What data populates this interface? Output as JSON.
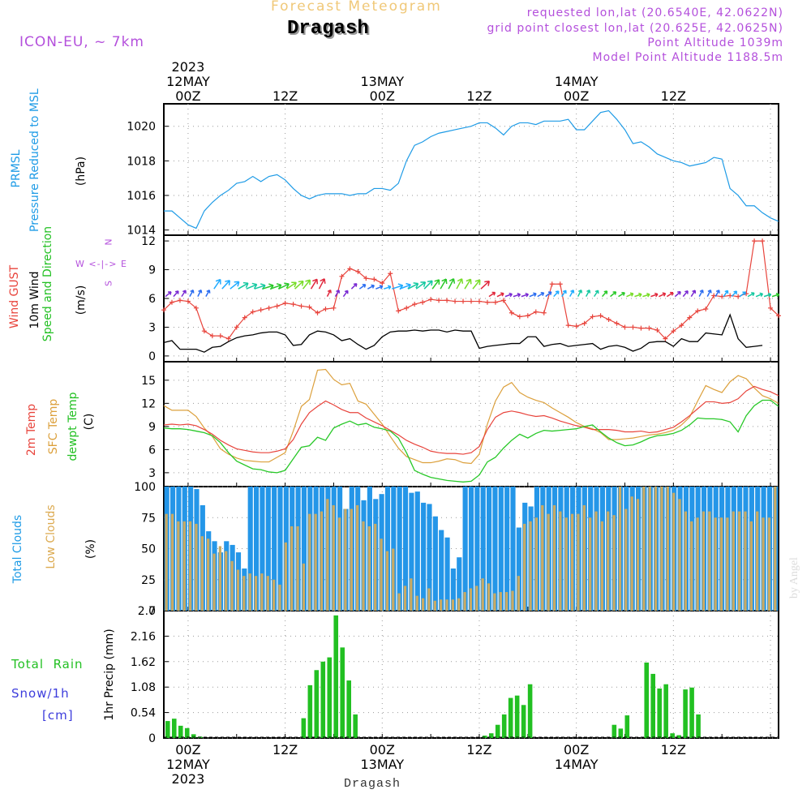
{
  "header": {
    "subtitle": "Forecast Meteogram",
    "location": "Dragash",
    "model": "ICON-EU, ~ 7km",
    "requested": "requested lon,lat (20.6540E, 42.0622N)",
    "grid_point": "grid point closest lon,lat (20.625E, 42.0625N)",
    "point_altitude": "Point Altitude 1039m",
    "model_altitude": "Model Point Altitude 1188.5m",
    "footer": "Dragash",
    "credit": "by Angel"
  },
  "time_axis": {
    "top_labels": [
      {
        "hour": 3,
        "lines": [
          "2023",
          "12MAY",
          "00Z"
        ]
      },
      {
        "hour": 15,
        "lines": [
          "12Z"
        ]
      },
      {
        "hour": 27,
        "lines": [
          "13MAY",
          "00Z"
        ]
      },
      {
        "hour": 39,
        "lines": [
          "12Z"
        ]
      },
      {
        "hour": 51,
        "lines": [
          "14MAY",
          "00Z"
        ]
      },
      {
        "hour": 63,
        "lines": [
          "12Z"
        ]
      }
    ],
    "bottom_labels": [
      {
        "hour": 3,
        "lines": [
          "00Z",
          "12MAY",
          "2023"
        ]
      },
      {
        "hour": 15,
        "lines": [
          "12Z"
        ]
      },
      {
        "hour": 27,
        "lines": [
          "00Z",
          "13MAY"
        ]
      },
      {
        "hour": 39,
        "lines": [
          "12Z"
        ]
      },
      {
        "hour": 51,
        "lines": [
          "00Z",
          "14MAY"
        ]
      },
      {
        "hour": 63,
        "lines": [
          "12Z"
        ]
      }
    ]
  },
  "panel_labels": {
    "pressure": [
      "PRMSL",
      "Pressure Reduced to MSL",
      "(hPa)"
    ],
    "wind": [
      "Wind GUST",
      "10m Wind",
      "Speed and Direction",
      "(m/s)"
    ],
    "compass": [
      "N",
      "S",
      "W <-|-> E"
    ],
    "temp": [
      "2m Temp",
      "SFC Temp",
      "dewpt Temp",
      "(C)"
    ],
    "clouds": [
      "Total Clouds",
      "Low Clouds",
      "(%)"
    ],
    "precip": [
      "Total  Rain",
      "Snow/1h",
      "[cm]",
      "1hr Precip (mm)"
    ]
  },
  "colors": {
    "pressure": "#1e9be6",
    "gust": "#e8443c",
    "wind10m": "#000000",
    "t2m": "#e8443c",
    "tsfc": "#dca03c",
    "dewpt": "#28c828",
    "cloud_total": "#2496e8",
    "cloud_low": "#c8aa64",
    "rain": "#22c022",
    "snow": "#3c3cdc",
    "subtitle": "#f0c878",
    "info": "#b450dc"
  },
  "chart_data": [
    {
      "type": "line",
      "title": "PRMSL Pressure Reduced to MSL",
      "ylabel": "(hPa)",
      "ylim": [
        1013.7,
        1021.3
      ],
      "yticks": [
        1014,
        1016,
        1018,
        1020
      ],
      "x": "hours 0-76",
      "series": [
        {
          "name": "PRMSL",
          "values": [
            1015.1,
            1015.1,
            1014.7,
            1014.3,
            1014.1,
            1015.1,
            1015.6,
            1016.0,
            1016.3,
            1016.7,
            1016.8,
            1017.1,
            1016.8,
            1017.1,
            1017.2,
            1016.9,
            1016.4,
            1016.0,
            1015.8,
            1016.0,
            1016.1,
            1016.1,
            1016.1,
            1016.0,
            1016.1,
            1016.1,
            1016.4,
            1016.4,
            1016.3,
            1016.7,
            1018.0,
            1018.9,
            1019.1,
            1019.4,
            1019.6,
            1019.7,
            1019.8,
            1019.9,
            1020.0,
            1020.2,
            1020.2,
            1019.9,
            1019.5,
            1020.0,
            1020.2,
            1020.2,
            1020.1,
            1020.3,
            1020.3,
            1020.3,
            1020.4,
            1019.8,
            1019.8,
            1020.3,
            1020.8,
            1020.9,
            1020.4,
            1019.8,
            1019.0,
            1019.1,
            1018.8,
            1018.4,
            1018.2,
            1018.0,
            1017.9,
            1017.7,
            1017.8,
            1017.9,
            1018.2,
            1018.1,
            1016.4,
            1016.0,
            1015.4,
            1015.4,
            1015.0,
            1014.7,
            1014.5
          ]
        }
      ]
    },
    {
      "type": "line",
      "title": "Wind GUST / 10m Wind Speed and Direction",
      "ylabel": "(m/s)",
      "ylim": [
        -0.6,
        12.6
      ],
      "yticks": [
        0,
        3,
        6,
        9,
        12
      ],
      "series": [
        {
          "name": "Wind GUST",
          "values": [
            4.8,
            5.6,
            5.8,
            5.7,
            5.0,
            2.6,
            2.1,
            2.1,
            1.8,
            3.0,
            4.0,
            4.6,
            4.8,
            5.0,
            5.2,
            5.5,
            5.4,
            5.2,
            5.1,
            4.5,
            4.9,
            5.0,
            8.3,
            9.1,
            8.8,
            8.1,
            8.0,
            7.6,
            8.6,
            4.7,
            5.0,
            5.4,
            5.6,
            5.9,
            5.8,
            5.8,
            5.7,
            5.7,
            5.7,
            5.7,
            5.6,
            5.6,
            5.8,
            4.5,
            4.1,
            4.2,
            4.6,
            4.5,
            7.5,
            7.5,
            3.2,
            3.1,
            3.4,
            4.1,
            4.2,
            3.8,
            3.4,
            3.0,
            3.0,
            2.9,
            2.9,
            2.7,
            1.8,
            2.6,
            3.2,
            4.0,
            4.7,
            4.9,
            6.3,
            6.2,
            6.3,
            6.2,
            6.5,
            12.0,
            12.0,
            5.0,
            4.2
          ]
        },
        {
          "name": "10m Wind",
          "values": [
            1.4,
            1.6,
            0.7,
            0.7,
            0.7,
            0.4,
            0.9,
            1.0,
            1.5,
            1.9,
            2.1,
            2.2,
            2.4,
            2.5,
            2.5,
            2.2,
            1.1,
            1.2,
            2.2,
            2.6,
            2.5,
            2.2,
            1.6,
            1.8,
            1.2,
            0.7,
            1.1,
            2.0,
            2.5,
            2.6,
            2.6,
            2.7,
            2.6,
            2.7,
            2.7,
            2.5,
            2.7,
            2.6,
            2.6,
            0.8,
            1.0,
            1.1,
            1.2,
            1.3,
            1.3,
            2.0,
            2.0,
            1.0,
            1.2,
            1.3,
            1.0,
            1.1,
            1.2,
            1.3,
            0.7,
            1.0,
            1.1,
            0.9,
            0.5,
            0.8,
            1.4,
            1.5,
            1.5,
            1.0,
            1.8,
            1.5,
            1.5,
            2.4,
            2.3,
            2.2,
            4.3,
            1.8,
            0.9,
            1.0,
            1.1
          ]
        }
      ]
    },
    {
      "type": "line",
      "title": "2m Temp / SFC Temp / dewpt Temp",
      "ylabel": "(C)",
      "ylim": [
        1.2,
        17.4
      ],
      "yticks": [
        3,
        6,
        9,
        12,
        15
      ],
      "series": [
        {
          "name": "2m Temp",
          "values": [
            9.2,
            9.3,
            9.2,
            9.3,
            9.1,
            8.6,
            8.0,
            7.2,
            6.6,
            6.1,
            5.9,
            5.7,
            5.6,
            5.6,
            5.8,
            6.1,
            7.3,
            9.3,
            10.8,
            11.6,
            12.3,
            11.8,
            11.2,
            10.8,
            10.8,
            10.1,
            9.6,
            9.1,
            8.5,
            7.9,
            7.2,
            6.7,
            6.3,
            5.8,
            5.6,
            5.5,
            5.5,
            5.4,
            5.6,
            6.4,
            8.6,
            10.2,
            10.8,
            11.0,
            10.8,
            10.5,
            10.3,
            10.4,
            10.1,
            9.7,
            9.4,
            9.1,
            8.9,
            8.6,
            8.6,
            8.6,
            8.5,
            8.3,
            8.3,
            8.4,
            8.2,
            8.3,
            8.6,
            8.9,
            9.6,
            10.4,
            11.3,
            12.2,
            12.2,
            12.0,
            12.1,
            12.6,
            13.6,
            14.2,
            13.8,
            13.5,
            13.0
          ]
        },
        {
          "name": "SFC Temp",
          "values": [
            11.7,
            11.1,
            11.1,
            11.1,
            10.3,
            8.8,
            7.7,
            6.1,
            5.4,
            4.9,
            4.6,
            4.5,
            4.4,
            4.4,
            5.0,
            5.6,
            8.4,
            11.6,
            12.5,
            16.3,
            16.4,
            15.1,
            14.4,
            14.6,
            12.3,
            11.9,
            10.6,
            9.3,
            7.7,
            6.2,
            5.1,
            4.7,
            4.3,
            4.3,
            4.5,
            4.8,
            4.7,
            4.3,
            4.2,
            5.4,
            9.3,
            12.3,
            14.1,
            14.7,
            13.4,
            12.8,
            12.4,
            12.1,
            11.4,
            10.8,
            10.2,
            9.5,
            9.0,
            8.7,
            8.2,
            7.3,
            7.3,
            7.4,
            7.5,
            7.7,
            7.9,
            8.0,
            8.2,
            8.5,
            9.2,
            10.2,
            12.3,
            14.3,
            13.8,
            13.4,
            14.8,
            15.6,
            15.2,
            14.0,
            13.0,
            12.6,
            12.0
          ]
        },
        {
          "name": "dewpt Temp",
          "values": [
            8.8,
            8.7,
            8.7,
            8.6,
            8.4,
            8.2,
            7.8,
            6.9,
            5.6,
            4.5,
            4.0,
            3.5,
            3.4,
            3.1,
            3.0,
            3.3,
            4.8,
            6.3,
            6.5,
            7.6,
            7.2,
            8.8,
            9.3,
            9.7,
            9.2,
            9.4,
            8.9,
            8.7,
            8.4,
            7.5,
            5.6,
            3.3,
            2.8,
            2.4,
            2.2,
            2.0,
            1.9,
            1.8,
            1.9,
            2.7,
            4.4,
            5.0,
            6.2,
            7.2,
            8.0,
            7.5,
            8.1,
            8.5,
            8.4,
            8.5,
            8.6,
            8.7,
            9.0,
            9.2,
            8.3,
            7.5,
            6.9,
            6.5,
            6.6,
            7.0,
            7.5,
            7.8,
            7.9,
            8.1,
            8.5,
            9.2,
            10.1,
            10.0,
            10.0,
            9.9,
            9.6,
            8.3,
            10.4,
            11.7,
            12.4,
            12.4,
            11.6
          ]
        }
      ]
    },
    {
      "type": "bar",
      "title": "Total Clouds / Low Clouds",
      "ylabel": "(%)",
      "ylim": [
        0,
        100
      ],
      "yticks": [
        0,
        25,
        50,
        75,
        100
      ],
      "series": [
        {
          "name": "Total Clouds",
          "values": [
            100,
            100,
            100,
            100,
            100,
            98,
            85,
            64,
            56,
            47,
            56,
            53,
            47,
            34,
            100,
            100,
            100,
            100,
            100,
            100,
            100,
            100,
            100,
            100,
            100,
            100,
            100,
            100,
            100,
            100,
            82,
            100,
            100,
            89,
            100,
            90,
            94,
            100,
            100,
            100,
            100,
            95,
            96,
            87,
            86,
            76,
            65,
            59,
            34,
            43,
            100,
            100,
            100,
            100,
            100,
            100,
            100,
            100,
            100,
            67,
            87,
            84,
            100,
            100,
            100,
            100,
            100,
            100,
            100,
            100,
            100,
            100,
            100,
            100,
            100,
            100,
            100,
            100,
            100,
            100,
            100,
            100,
            100,
            100,
            100,
            100,
            100,
            100,
            100,
            100,
            100,
            100,
            100,
            100,
            100,
            100,
            100,
            100,
            100,
            100,
            100,
            100,
            100,
            100,
            100,
            100,
            100,
            100,
            100,
            100,
            100,
            100,
            100,
            100,
            100,
            100,
            100,
            100,
            100,
            100,
            100,
            100,
            100,
            100,
            100,
            100,
            100,
            100,
            100,
            100,
            100,
            100,
            100,
            100,
            100,
            100,
            100,
            100,
            100,
            100,
            100,
            100,
            100,
            100,
            100,
            100,
            100,
            100,
            100,
            100,
            100,
            100,
            100,
            100,
            100,
            100,
            100,
            100,
            100,
            100,
            100,
            100,
            100,
            100,
            100,
            100,
            100,
            100,
            100,
            100,
            100,
            100,
            100,
            100,
            100,
            100,
            100,
            100,
            100,
            100,
            100,
            100,
            100
          ]
        },
        {
          "name": "Low Clouds",
          "values": [
            78,
            78,
            72,
            72,
            72,
            70,
            60,
            58,
            46,
            52,
            48,
            40,
            33,
            28,
            30,
            28,
            30,
            28,
            25,
            21,
            55,
            68,
            68,
            38,
            78,
            78,
            80,
            90,
            85,
            75,
            82,
            82,
            85,
            72,
            68,
            70,
            58,
            48,
            50,
            14,
            20,
            26,
            12,
            10,
            18,
            8,
            9,
            9,
            9,
            10,
            15,
            18,
            20,
            26,
            22,
            14,
            15,
            15,
            16,
            28,
            70,
            72,
            75,
            85,
            78,
            85,
            80,
            75,
            78,
            78,
            85,
            75,
            80,
            72,
            80,
            77,
            100,
            82,
            92,
            90,
            100,
            100,
            100,
            100,
            100,
            95,
            90,
            80,
            72,
            75,
            80,
            80,
            75,
            75,
            75,
            80,
            80,
            80,
            72,
            80,
            75,
            75,
            100
          ]
        }
      ]
    },
    {
      "type": "bar",
      "title": "Total Rain / Snow 1h",
      "ylabel": "1hr Precip (mm)",
      "ylim": [
        0,
        2.7
      ],
      "yticks": [
        0,
        0.54,
        1.08,
        1.62,
        2.16,
        2.7
      ],
      "series": [
        {
          "name": "Total Rain",
          "values": [
            0.36,
            0.41,
            0.26,
            0.21,
            0.08,
            0.03,
            0,
            0,
            0,
            0,
            0,
            0,
            0,
            0,
            0,
            0,
            0,
            0,
            0,
            0,
            0,
            0.42,
            1.12,
            1.44,
            1.62,
            1.71,
            2.6,
            1.92,
            1.22,
            0.5,
            0,
            0,
            0,
            0,
            0,
            0,
            0,
            0,
            0,
            0,
            0,
            0,
            0,
            0,
            0,
            0,
            0,
            0,
            0,
            0.05,
            0.1,
            0.28,
            0.5,
            0.85,
            0.9,
            0.7,
            1.14,
            0,
            0,
            0,
            0,
            0,
            0,
            0,
            0,
            0,
            0,
            0,
            0,
            0.28,
            0.2,
            0.48,
            0,
            0,
            1.6,
            1.36,
            1.05,
            1.14,
            0.1,
            0.06,
            1.03,
            1.07,
            0.5
          ]
        },
        {
          "name": "Snow/1h",
          "values": []
        }
      ]
    }
  ]
}
